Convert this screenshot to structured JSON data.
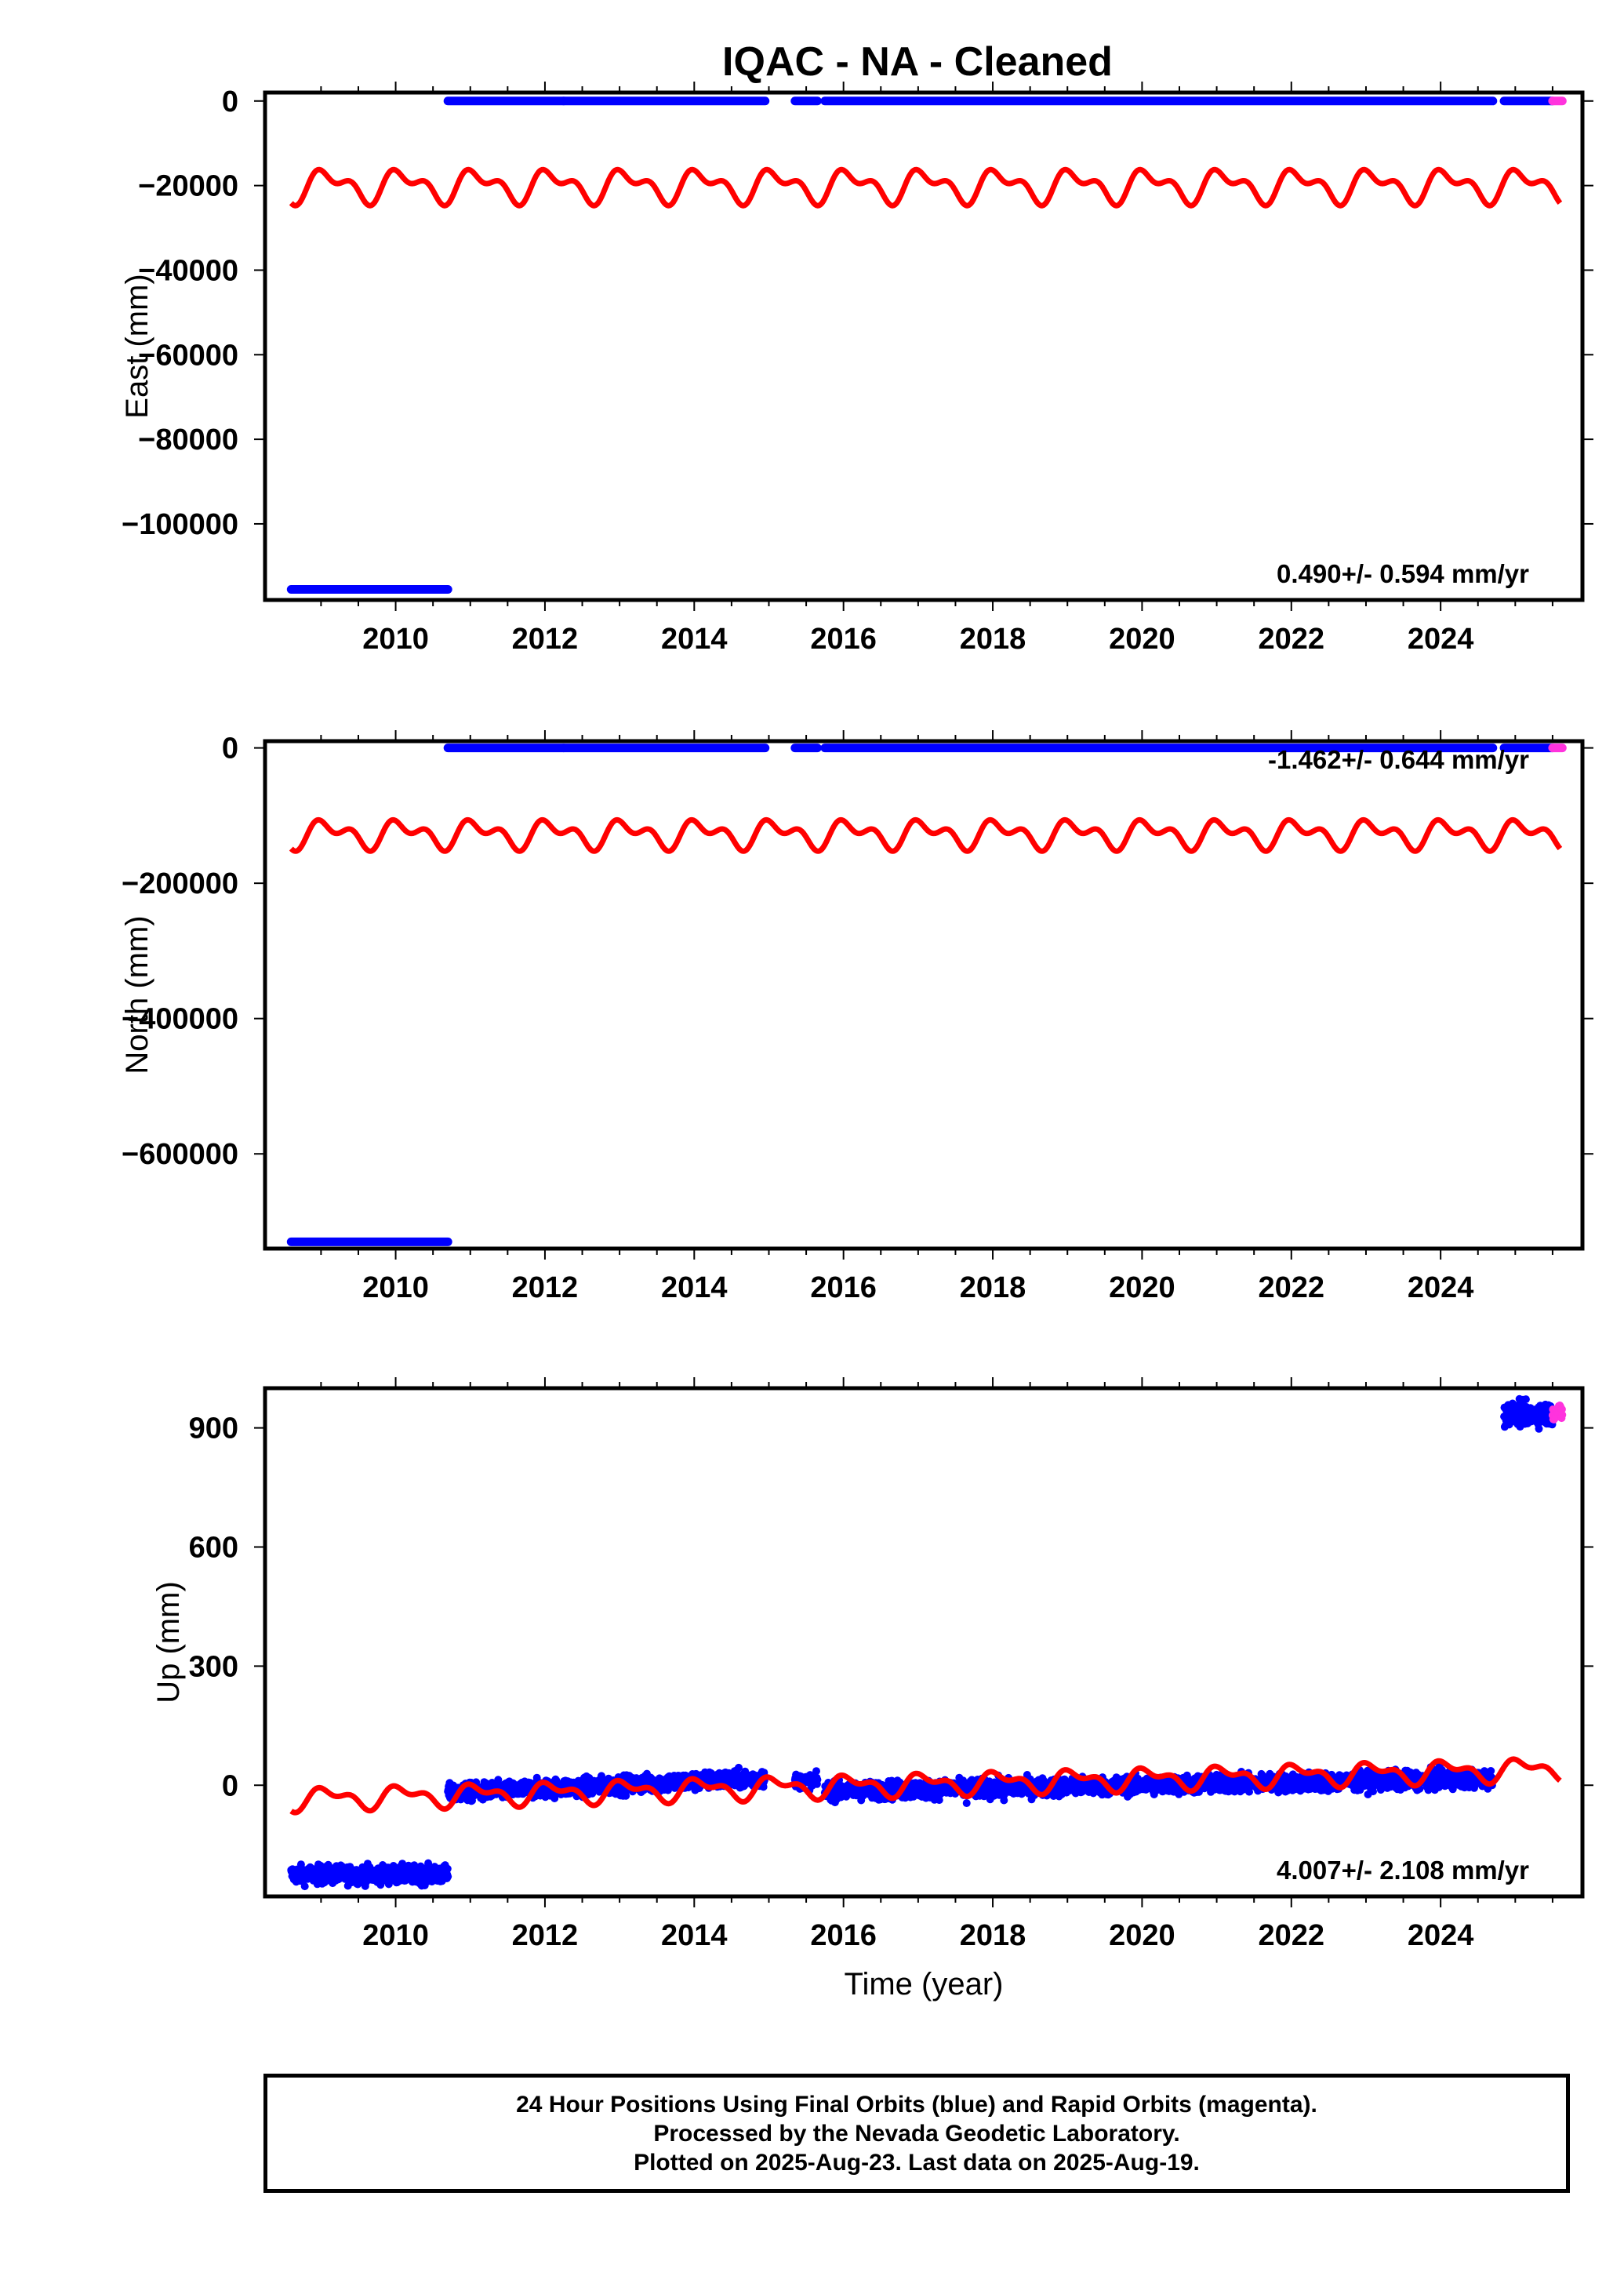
{
  "title": "IQAC  - NA - Cleaned",
  "footer": {
    "lines": [
      "24 Hour Positions Using Final Orbits (blue) and Rapid Orbits (magenta).",
      "Processed by the Nevada Geodetic Laboratory.",
      "Plotted on 2025-Aug-23. Last data on 2025-Aug-19."
    ]
  },
  "colors": {
    "final_orbits": "#0000ff",
    "rapid_orbits": "#ff33dd",
    "model": "#ff0000"
  },
  "chart_data": [
    {
      "type": "scatter",
      "xlabel": "",
      "ylabel": "East (mm)",
      "xlim": [
        2008.25,
        2025.9
      ],
      "ylim": [
        -118000,
        2000
      ],
      "xticks": [
        2010,
        2012,
        2014,
        2016,
        2018,
        2020,
        2022,
        2024
      ],
      "yticks": [
        0,
        -20000,
        -40000,
        -60000,
        -80000,
        -100000
      ],
      "ytick_labels": [
        "0",
        "−20000",
        "−40000",
        "−60000",
        "−80000",
        "−100000"
      ],
      "rate_label": "0.490+/- 0.594 mm/yr",
      "rate_position": "bottom-right",
      "final_segments": [
        {
          "x": [
            2008.6,
            2010.7
          ],
          "y": -115500
        },
        {
          "x": [
            2010.7,
            2012.25
          ],
          "y": 0
        },
        {
          "x": [
            2012.25,
            2014.95
          ],
          "y": 0
        },
        {
          "x": [
            2015.35,
            2015.65
          ],
          "y": 0
        },
        {
          "x": [
            2015.75,
            2024.7
          ],
          "y": 0
        },
        {
          "x": [
            2024.85,
            2025.5
          ],
          "y": 0
        }
      ],
      "rapid_segments": [
        {
          "x": [
            2025.5,
            2025.63
          ],
          "y": 0
        }
      ],
      "model": {
        "x_start": 2008.6,
        "x_end": 2025.6,
        "offset": -20000,
        "annual_amplitude": 3000,
        "semiannual_amplitude": 2000,
        "trend_per_year": 0
      }
    },
    {
      "type": "scatter",
      "xlabel": "",
      "ylabel": "North (mm)",
      "xlim": [
        2008.25,
        2025.9
      ],
      "ylim": [
        -740000,
        10000
      ],
      "xticks": [
        2010,
        2012,
        2014,
        2016,
        2018,
        2020,
        2022,
        2024
      ],
      "yticks": [
        0,
        -200000,
        -400000,
        -600000
      ],
      "ytick_labels": [
        "0",
        "−200000",
        "−400000",
        "−600000"
      ],
      "rate_label": "-1.462+/- 0.644 mm/yr",
      "rate_position": "top-right",
      "final_segments": [
        {
          "x": [
            2008.6,
            2010.7
          ],
          "y": -730000
        },
        {
          "x": [
            2010.7,
            2012.25
          ],
          "y": 0
        },
        {
          "x": [
            2012.25,
            2014.95
          ],
          "y": 0
        },
        {
          "x": [
            2015.35,
            2015.65
          ],
          "y": 0
        },
        {
          "x": [
            2015.75,
            2024.7
          ],
          "y": 0
        },
        {
          "x": [
            2024.85,
            2025.5
          ],
          "y": 0
        }
      ],
      "rapid_segments": [
        {
          "x": [
            2025.5,
            2025.63
          ],
          "y": 0
        }
      ],
      "model": {
        "x_start": 2008.6,
        "x_end": 2025.6,
        "offset": -127000,
        "annual_amplitude": 15000,
        "semiannual_amplitude": 12000,
        "trend_per_year": 0
      }
    },
    {
      "type": "scatter",
      "xlabel": "Time (year)",
      "ylabel": "Up (mm)",
      "xlim": [
        2008.25,
        2025.9
      ],
      "ylim": [
        -280,
        1000
      ],
      "xticks": [
        2010,
        2012,
        2014,
        2016,
        2018,
        2020,
        2022,
        2024
      ],
      "yticks": [
        900,
        600,
        300,
        0
      ],
      "ytick_labels": [
        "900",
        "600",
        "300",
        "0"
      ],
      "rate_label": "4.007+/- 2.108 mm/yr",
      "rate_position": "bottom-right",
      "final_clusters": [
        {
          "x": [
            2008.6,
            2010.7
          ],
          "center": -225,
          "trend": 0,
          "spread": 32
        },
        {
          "x": [
            2010.7,
            2014.95
          ],
          "center": -20,
          "trend": 9,
          "spread": 32
        },
        {
          "x": [
            2015.35,
            2015.65
          ],
          "center": 10,
          "trend": 0,
          "spread": 25
        },
        {
          "x": [
            2015.75,
            2024.7
          ],
          "center": -15,
          "trend": 3.5,
          "spread": 32
        },
        {
          "x": [
            2024.85,
            2025.5
          ],
          "center": 935,
          "trend": 0,
          "spread": 40
        }
      ],
      "outliers": [
        {
          "x": 2017.65,
          "y": -45
        },
        {
          "x": 2018.15,
          "y": -38
        }
      ],
      "rapid_clusters": [
        {
          "x": [
            2025.5,
            2025.63
          ],
          "center": 940,
          "trend": 0,
          "spread": 30
        }
      ],
      "model": {
        "x_start": 2008.6,
        "x_end": 2025.6,
        "offset": -35,
        "annual_amplitude": 22,
        "semiannual_amplitude": 14,
        "trend_per_year": 4.5
      }
    }
  ]
}
